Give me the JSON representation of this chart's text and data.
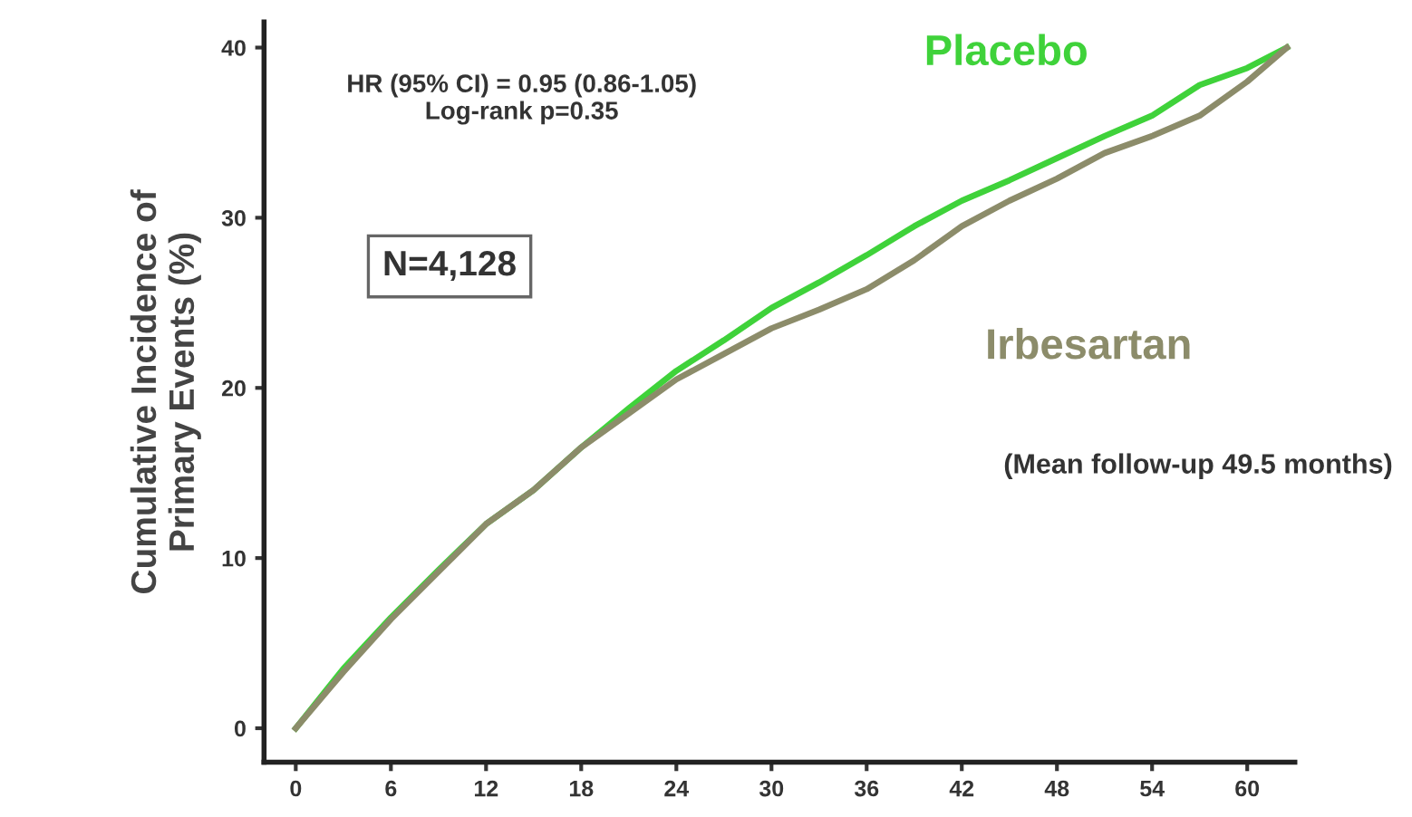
{
  "chart_data": {
    "type": "line",
    "ylabel": "Cumulative Incidence of\nPrimary Events (%)",
    "x": [
      0,
      3,
      6,
      9,
      12,
      15,
      18,
      21,
      24,
      27,
      30,
      33,
      36,
      39,
      42,
      45,
      48,
      51,
      54,
      57,
      60,
      62.5
    ],
    "series": [
      {
        "name": "Placebo",
        "color": "#3fd23a",
        "values": [
          0,
          3.5,
          6.5,
          9.3,
          12,
          14,
          16.5,
          18.8,
          21,
          22.8,
          24.7,
          26.2,
          27.8,
          29.5,
          31,
          32.2,
          33.5,
          34.8,
          36,
          37.8,
          38.8,
          40
        ]
      },
      {
        "name": "Irbesartan",
        "color": "#8c8c6a",
        "values": [
          0,
          3.3,
          6.4,
          9.2,
          12,
          14,
          16.5,
          18.5,
          20.5,
          22,
          23.5,
          24.6,
          25.8,
          27.5,
          29.5,
          31,
          32.3,
          33.8,
          34.8,
          36,
          38,
          40
        ]
      }
    ],
    "xlim": [
      -2,
      63
    ],
    "ylim": [
      -2,
      41.5
    ],
    "xticks": [
      0,
      6,
      12,
      18,
      24,
      30,
      36,
      42,
      48,
      54,
      60
    ],
    "yticks": [
      0,
      10,
      20,
      30,
      40
    ],
    "grid": false,
    "legend": false,
    "annotations": [
      "HR (95% CI) = 0.95 (0.86-1.05)\nLog-rank p=0.35",
      "N=4,128",
      "(Mean follow-up 49.5 months)"
    ]
  }
}
